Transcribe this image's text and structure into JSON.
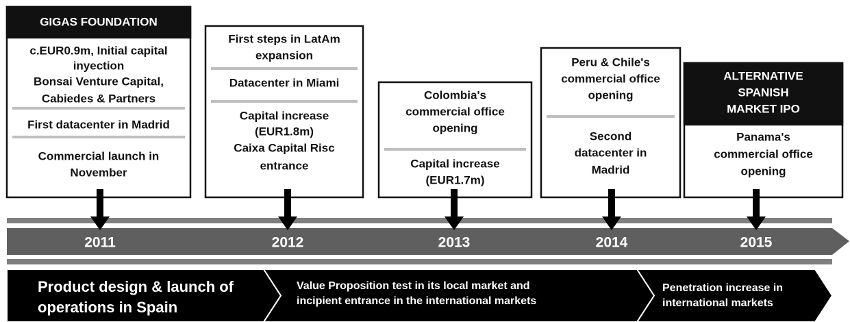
{
  "timeline": {
    "columns": [
      {
        "header": [
          "GIGAS FOUNDATION"
        ],
        "items": [
          [
            "c.EUR0.9m, Initial capital",
            "inyection",
            "Bonsai Venture Capital,",
            "Cabiedes & Partners"
          ],
          [
            "First datacenter in Madrid"
          ],
          [
            "Commercial launch in",
            "November"
          ]
        ],
        "year": "2011"
      },
      {
        "items": [
          [
            "First steps in LatAm",
            "expansion"
          ],
          [
            "Datacenter in Miami"
          ],
          [
            "Capital increase",
            "(EUR1.8m)",
            "Caixa Capital Risc",
            "entrance"
          ]
        ],
        "year": "2012"
      },
      {
        "items": [
          [
            "Colombia's",
            "commercial office",
            "opening"
          ],
          [
            "Capital increase",
            "(EUR1.7m)"
          ]
        ],
        "year": "2013"
      },
      {
        "items": [
          [
            "Peru & Chile's",
            "commercial office",
            "opening"
          ],
          [
            "Second",
            "datacenter in",
            "Madrid"
          ]
        ],
        "year": "2014"
      },
      {
        "header": [
          "ALTERNATIVE",
          "SPANISH",
          "MARKET IPO"
        ],
        "items": [
          [
            "Panama's",
            "commercial office",
            "opening"
          ]
        ],
        "year": "2015"
      }
    ],
    "phases": [
      [
        "Product design & launch of",
        "operations in Spain"
      ],
      [
        "Value Proposition test in its local market and",
        "incipient entrance in the international markets"
      ],
      [
        "Penetration increase in",
        "international markets"
      ]
    ]
  }
}
